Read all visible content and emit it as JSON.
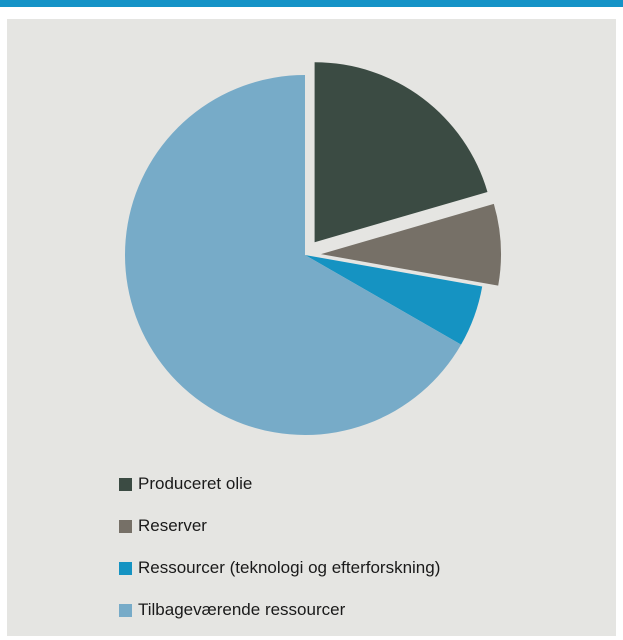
{
  "chart_data": {
    "type": "pie",
    "title": "",
    "slices": [
      {
        "label": "Produceret olie",
        "value": 20.5,
        "color": "#3b4b43",
        "exploded": true
      },
      {
        "label": "Reserver",
        "value": 7.3,
        "color": "#767067",
        "exploded": true
      },
      {
        "label": "Ressourcer (teknologi og efterforskning)",
        "value": 5.5,
        "color": "#1593c2",
        "exploded": false
      },
      {
        "label": "Tilbageværende ressourcer",
        "value": 66.7,
        "color": "#77abc8",
        "exploded": false
      }
    ],
    "start_angle_deg": 0,
    "direction": "clockwise",
    "legend_position": "bottom-left"
  }
}
